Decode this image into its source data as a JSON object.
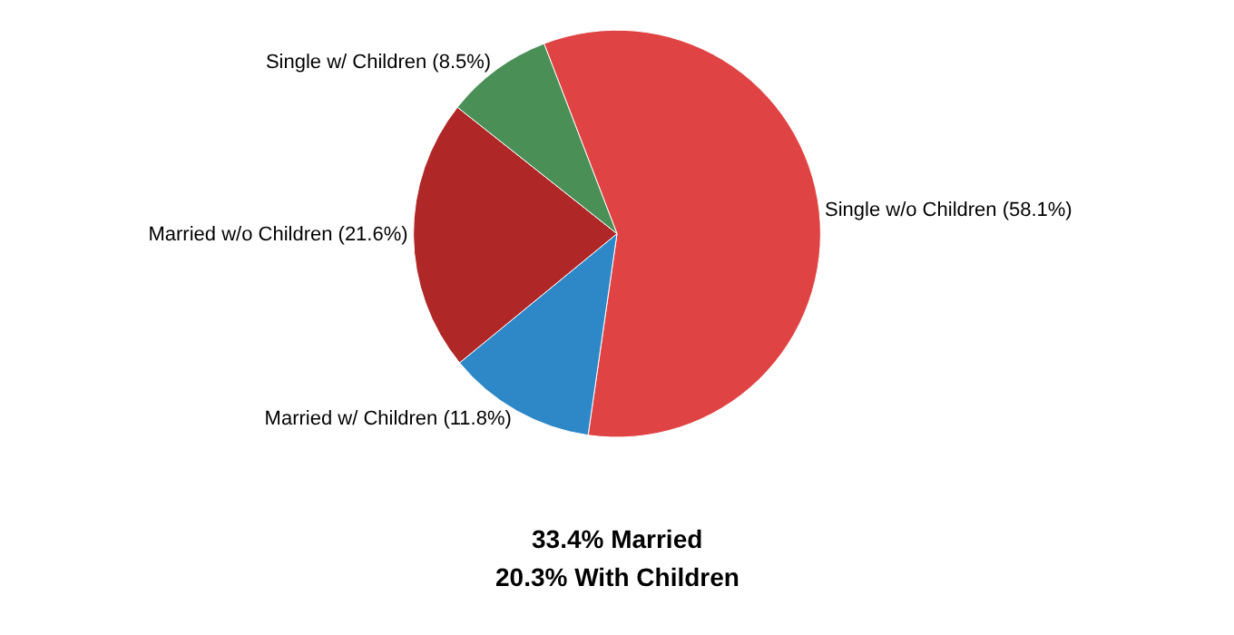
{
  "chart_data": {
    "type": "pie",
    "categories": [
      "Single w/o Children",
      "Married w/ Children",
      "Married w/o Children",
      "Single w/ Children"
    ],
    "values": [
      58.1,
      11.8,
      21.6,
      8.5
    ],
    "value_labels": [
      "(58.1%)",
      "(11.8%)",
      "(21.6%)",
      "(8.5%)"
    ],
    "colors": [
      "#e04343",
      "#2e87c7",
      "#b02727",
      "#4a8f55"
    ],
    "annotations": [
      "33.4% Married",
      "20.3% With Children"
    ],
    "legend": false
  }
}
